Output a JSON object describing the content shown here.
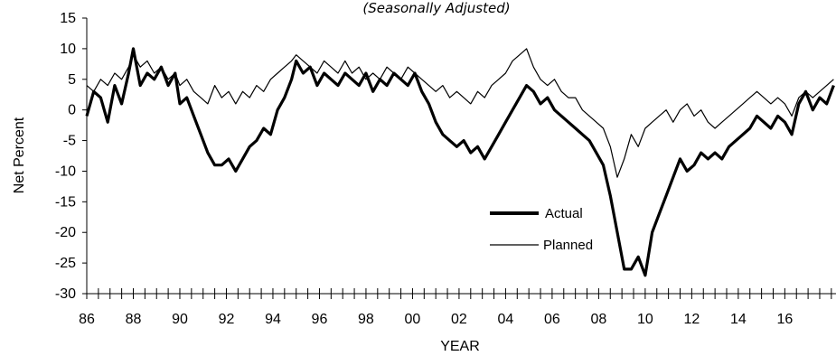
{
  "chart_data": {
    "type": "line",
    "title": "",
    "subtitle": "(Seasonally Adjusted)",
    "xlabel": "YEAR",
    "ylabel": "Net Percent",
    "xlim": [
      1986,
      2018.2
    ],
    "ylim": [
      -30,
      15
    ],
    "y_ticks": [
      15,
      10,
      5,
      0,
      -5,
      -10,
      -15,
      -20,
      -25,
      -30
    ],
    "x_tick_labels": [
      "86",
      "88",
      "90",
      "92",
      "94",
      "96",
      "98",
      "00",
      "02",
      "04",
      "06",
      "08",
      "10",
      "12",
      "14",
      "16"
    ],
    "x_tick_years": [
      1986,
      1988,
      1990,
      1992,
      1994,
      1996,
      1998,
      2000,
      2002,
      2004,
      2006,
      2008,
      2010,
      2012,
      2014,
      2016
    ],
    "grid": false,
    "legend_position": "bottom-right-inside",
    "series": [
      {
        "name": "Actual",
        "line_style": "thick",
        "color": "#000000",
        "points": [
          [
            1986.0,
            -1
          ],
          [
            1986.3,
            3
          ],
          [
            1986.6,
            2
          ],
          [
            1986.9,
            -2
          ],
          [
            1987.2,
            4
          ],
          [
            1987.5,
            1
          ],
          [
            1987.8,
            6
          ],
          [
            1988.0,
            10
          ],
          [
            1988.3,
            4
          ],
          [
            1988.6,
            6
          ],
          [
            1988.9,
            5
          ],
          [
            1989.2,
            7
          ],
          [
            1989.5,
            4
          ],
          [
            1989.8,
            6
          ],
          [
            1990.0,
            1
          ],
          [
            1990.3,
            2
          ],
          [
            1990.6,
            -1
          ],
          [
            1990.9,
            -4
          ],
          [
            1991.2,
            -7
          ],
          [
            1991.5,
            -9
          ],
          [
            1991.8,
            -9
          ],
          [
            1992.1,
            -8
          ],
          [
            1992.4,
            -10
          ],
          [
            1992.7,
            -8
          ],
          [
            1993.0,
            -6
          ],
          [
            1993.3,
            -5
          ],
          [
            1993.6,
            -3
          ],
          [
            1993.9,
            -4
          ],
          [
            1994.2,
            0
          ],
          [
            1994.5,
            2
          ],
          [
            1994.8,
            5
          ],
          [
            1995.0,
            8
          ],
          [
            1995.3,
            6
          ],
          [
            1995.6,
            7
          ],
          [
            1995.9,
            4
          ],
          [
            1996.2,
            6
          ],
          [
            1996.5,
            5
          ],
          [
            1996.8,
            4
          ],
          [
            1997.1,
            6
          ],
          [
            1997.4,
            5
          ],
          [
            1997.7,
            4
          ],
          [
            1998.0,
            6
          ],
          [
            1998.3,
            3
          ],
          [
            1998.6,
            5
          ],
          [
            1998.9,
            4
          ],
          [
            1999.2,
            6
          ],
          [
            1999.5,
            5
          ],
          [
            1999.8,
            4
          ],
          [
            2000.1,
            6
          ],
          [
            2000.4,
            3
          ],
          [
            2000.7,
            1
          ],
          [
            2001.0,
            -2
          ],
          [
            2001.3,
            -4
          ],
          [
            2001.6,
            -5
          ],
          [
            2001.9,
            -6
          ],
          [
            2002.2,
            -5
          ],
          [
            2002.5,
            -7
          ],
          [
            2002.8,
            -6
          ],
          [
            2003.1,
            -8
          ],
          [
            2003.4,
            -6
          ],
          [
            2003.7,
            -4
          ],
          [
            2004.0,
            -2
          ],
          [
            2004.3,
            0
          ],
          [
            2004.6,
            2
          ],
          [
            2004.9,
            4
          ],
          [
            2005.2,
            3
          ],
          [
            2005.5,
            1
          ],
          [
            2005.8,
            2
          ],
          [
            2006.1,
            0
          ],
          [
            2006.4,
            -1
          ],
          [
            2006.7,
            -2
          ],
          [
            2007.0,
            -3
          ],
          [
            2007.3,
            -4
          ],
          [
            2007.6,
            -5
          ],
          [
            2007.9,
            -7
          ],
          [
            2008.2,
            -9
          ],
          [
            2008.5,
            -14
          ],
          [
            2008.8,
            -20
          ],
          [
            2009.1,
            -26
          ],
          [
            2009.4,
            -26
          ],
          [
            2009.7,
            -24
          ],
          [
            2010.0,
            -27
          ],
          [
            2010.3,
            -20
          ],
          [
            2010.6,
            -17
          ],
          [
            2010.9,
            -14
          ],
          [
            2011.2,
            -11
          ],
          [
            2011.5,
            -8
          ],
          [
            2011.8,
            -10
          ],
          [
            2012.1,
            -9
          ],
          [
            2012.4,
            -7
          ],
          [
            2012.7,
            -8
          ],
          [
            2013.0,
            -7
          ],
          [
            2013.3,
            -8
          ],
          [
            2013.6,
            -6
          ],
          [
            2013.9,
            -5
          ],
          [
            2014.2,
            -4
          ],
          [
            2014.5,
            -3
          ],
          [
            2014.8,
            -1
          ],
          [
            2015.1,
            -2
          ],
          [
            2015.4,
            -3
          ],
          [
            2015.7,
            -1
          ],
          [
            2016.0,
            -2
          ],
          [
            2016.3,
            -4
          ],
          [
            2016.6,
            1
          ],
          [
            2016.9,
            3
          ],
          [
            2017.2,
            0
          ],
          [
            2017.5,
            2
          ],
          [
            2017.8,
            1
          ],
          [
            2018.1,
            4
          ]
        ]
      },
      {
        "name": "Planned",
        "line_style": "thin",
        "color": "#000000",
        "points": [
          [
            1986.0,
            4
          ],
          [
            1986.3,
            3
          ],
          [
            1986.6,
            5
          ],
          [
            1986.9,
            4
          ],
          [
            1987.2,
            6
          ],
          [
            1987.5,
            5
          ],
          [
            1987.8,
            7
          ],
          [
            1988.0,
            9
          ],
          [
            1988.3,
            7
          ],
          [
            1988.6,
            8
          ],
          [
            1988.9,
            6
          ],
          [
            1989.2,
            7
          ],
          [
            1989.5,
            5
          ],
          [
            1989.8,
            6
          ],
          [
            1990.0,
            4
          ],
          [
            1990.3,
            5
          ],
          [
            1990.6,
            3
          ],
          [
            1990.9,
            2
          ],
          [
            1991.2,
            1
          ],
          [
            1991.5,
            4
          ],
          [
            1991.8,
            2
          ],
          [
            1992.1,
            3
          ],
          [
            1992.4,
            1
          ],
          [
            1992.7,
            3
          ],
          [
            1993.0,
            2
          ],
          [
            1993.3,
            4
          ],
          [
            1993.6,
            3
          ],
          [
            1993.9,
            5
          ],
          [
            1994.2,
            6
          ],
          [
            1994.5,
            7
          ],
          [
            1994.8,
            8
          ],
          [
            1995.0,
            9
          ],
          [
            1995.3,
            8
          ],
          [
            1995.6,
            7
          ],
          [
            1995.9,
            6
          ],
          [
            1996.2,
            8
          ],
          [
            1996.5,
            7
          ],
          [
            1996.8,
            6
          ],
          [
            1997.1,
            8
          ],
          [
            1997.4,
            6
          ],
          [
            1997.7,
            7
          ],
          [
            1998.0,
            5
          ],
          [
            1998.3,
            6
          ],
          [
            1998.6,
            5
          ],
          [
            1998.9,
            7
          ],
          [
            1999.2,
            6
          ],
          [
            1999.5,
            5
          ],
          [
            1999.8,
            7
          ],
          [
            2000.1,
            6
          ],
          [
            2000.4,
            5
          ],
          [
            2000.7,
            4
          ],
          [
            2001.0,
            3
          ],
          [
            2001.3,
            4
          ],
          [
            2001.6,
            2
          ],
          [
            2001.9,
            3
          ],
          [
            2002.2,
            2
          ],
          [
            2002.5,
            1
          ],
          [
            2002.8,
            3
          ],
          [
            2003.1,
            2
          ],
          [
            2003.4,
            4
          ],
          [
            2003.7,
            5
          ],
          [
            2004.0,
            6
          ],
          [
            2004.3,
            8
          ],
          [
            2004.6,
            9
          ],
          [
            2004.9,
            10
          ],
          [
            2005.2,
            7
          ],
          [
            2005.5,
            5
          ],
          [
            2005.8,
            4
          ],
          [
            2006.1,
            5
          ],
          [
            2006.4,
            3
          ],
          [
            2006.7,
            2
          ],
          [
            2007.0,
            2
          ],
          [
            2007.3,
            0
          ],
          [
            2007.6,
            -1
          ],
          [
            2007.9,
            -2
          ],
          [
            2008.2,
            -3
          ],
          [
            2008.5,
            -6
          ],
          [
            2008.8,
            -11
          ],
          [
            2009.1,
            -8
          ],
          [
            2009.4,
            -4
          ],
          [
            2009.7,
            -6
          ],
          [
            2010.0,
            -3
          ],
          [
            2010.3,
            -2
          ],
          [
            2010.6,
            -1
          ],
          [
            2010.9,
            0
          ],
          [
            2011.2,
            -2
          ],
          [
            2011.5,
            0
          ],
          [
            2011.8,
            1
          ],
          [
            2012.1,
            -1
          ],
          [
            2012.4,
            0
          ],
          [
            2012.7,
            -2
          ],
          [
            2013.0,
            -3
          ],
          [
            2013.3,
            -2
          ],
          [
            2013.6,
            -1
          ],
          [
            2013.9,
            0
          ],
          [
            2014.2,
            1
          ],
          [
            2014.5,
            2
          ],
          [
            2014.8,
            3
          ],
          [
            2015.1,
            2
          ],
          [
            2015.4,
            1
          ],
          [
            2015.7,
            2
          ],
          [
            2016.0,
            1
          ],
          [
            2016.3,
            -1
          ],
          [
            2016.6,
            2
          ],
          [
            2016.9,
            3
          ],
          [
            2017.2,
            2
          ],
          [
            2017.5,
            3
          ],
          [
            2017.8,
            4
          ],
          [
            2018.1,
            5
          ]
        ]
      }
    ]
  }
}
